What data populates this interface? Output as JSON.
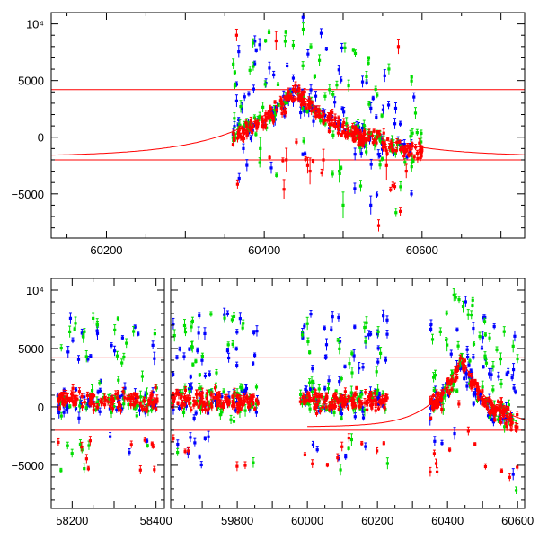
{
  "chart_data": [
    {
      "type": "scatter",
      "panel": "top",
      "title": "",
      "xlabel": "",
      "ylabel": "",
      "xlim": [
        60130,
        60730
      ],
      "ylim": [
        -8900,
        11000
      ],
      "x_ticks": [
        60200,
        60400,
        60600
      ],
      "x_tick_labels": [
        "60200",
        "60400",
        "60600"
      ],
      "y_ticks": [
        -5000,
        0,
        5000,
        10000
      ],
      "y_tick_labels": [
        "−5000",
        "0",
        "5000",
        "10⁴"
      ],
      "grid": false,
      "legend": "none",
      "series": [
        {
          "color": "#0000ff",
          "marker": "point with error bar",
          "x_range": [
            60360,
            60600
          ],
          "y_center": 3000
        },
        {
          "color": "#00dd00",
          "marker": "point with error bar",
          "x_range": [
            60360,
            60600
          ],
          "y_center": 2500
        },
        {
          "color": "#ff0000",
          "marker": "point with error bar",
          "x_range": [
            60350,
            60600
          ],
          "y_center": 2200
        }
      ],
      "model_curve": {
        "color": "#ff0000",
        "shape": "symmetric cusp",
        "peak_x": 60440,
        "peak_y": 4300,
        "baseline_y": -1700,
        "tail_width_days": 175
      },
      "reference_lines": [
        {
          "y": 4200,
          "color": "#ff0000"
        },
        {
          "y": -2000,
          "color": "#ff0000"
        }
      ],
      "outliers": [
        {
          "x": 60425,
          "y": -4600,
          "c": "red"
        },
        {
          "x": 60428,
          "y": -2000,
          "c": "red"
        },
        {
          "x": 60455,
          "y": -2500,
          "c": "red"
        },
        {
          "x": 60458,
          "y": -3000,
          "c": "red"
        },
        {
          "x": 60475,
          "y": -2000,
          "c": "red"
        },
        {
          "x": 60500,
          "y": -6000,
          "c": "green"
        },
        {
          "x": 60515,
          "y": -1500,
          "c": "blue"
        },
        {
          "x": 60535,
          "y": -6000,
          "c": "blue"
        },
        {
          "x": 60545,
          "y": -7800,
          "c": "red"
        },
        {
          "x": 60555,
          "y": -2500,
          "c": "red"
        },
        {
          "x": 60580,
          "y": -3000,
          "c": "red"
        },
        {
          "x": 60495,
          "y": -3000,
          "c": "green"
        },
        {
          "x": 60395,
          "y": -1000,
          "c": "green"
        },
        {
          "x": 60415,
          "y": 8500,
          "c": "red"
        },
        {
          "x": 60365,
          "y": 9000,
          "c": "red"
        },
        {
          "x": 60570,
          "y": 8000,
          "c": "red"
        }
      ]
    },
    {
      "type": "scatter",
      "panel": "bottom",
      "title": "",
      "xlabel": "",
      "ylabel": "",
      "axis_break": true,
      "segments": [
        {
          "xlim": [
            58150,
            58420
          ],
          "x_ticks": [
            58200,
            58300,
            58400
          ],
          "x_tick_labels": [
            "58200",
            "",
            "58400"
          ],
          "data_range": [
            58165,
            58405
          ]
        },
        {
          "xlim": [
            59610,
            60620
          ],
          "x_ticks": [
            59800,
            60000,
            60200,
            60400,
            60600
          ],
          "x_tick_labels": [
            "59800",
            "60000",
            "60200",
            "60400",
            "60600"
          ],
          "data_ranges": [
            [
              59615,
              59860
            ],
            [
              59980,
              60230
            ],
            [
              60350,
              60600
            ]
          ]
        }
      ],
      "ylim": [
        -8700,
        11000
      ],
      "y_ticks": [
        -5000,
        0,
        5000,
        10000
      ],
      "y_tick_labels": [
        "−5000",
        "0",
        "5000",
        "10⁴"
      ],
      "grid": false,
      "legend": "none",
      "series": [
        {
          "color": "#0000ff",
          "marker": "point with error bar"
        },
        {
          "color": "#00dd00",
          "marker": "point with error bar"
        },
        {
          "color": "#ff0000",
          "marker": "point with error bar"
        }
      ],
      "model_curve": {
        "color": "#ff0000",
        "shape": "symmetric cusp",
        "peak_x": 60440,
        "peak_y": 4300,
        "baseline_y": -1700,
        "tail_width_days": 175,
        "x_range": [
          60000,
          60620
        ]
      },
      "reference_lines": [
        {
          "y": 4200,
          "color": "#ff0000"
        },
        {
          "y": -2000,
          "color": "#ff0000"
        }
      ]
    }
  ]
}
